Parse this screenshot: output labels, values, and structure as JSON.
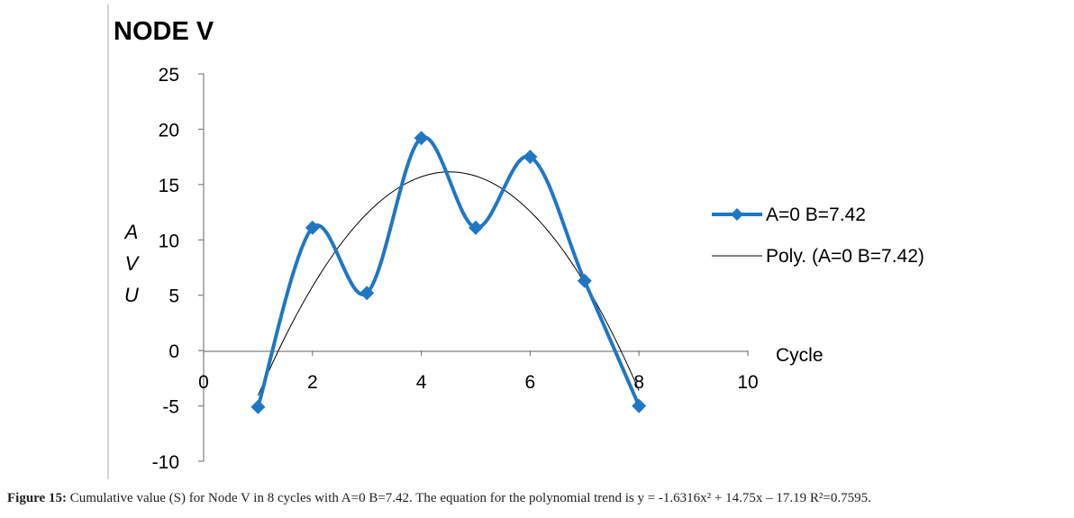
{
  "chart_data": {
    "type": "line",
    "title": "NODE V",
    "xlabel": "Cycle",
    "ylabel": [
      "A",
      "V",
      "U"
    ],
    "xlim": [
      0,
      10
    ],
    "ylim": [
      -10,
      25
    ],
    "x_ticks": [
      "0",
      "2",
      "4",
      "6",
      "8",
      "10"
    ],
    "y_ticks": [
      "25",
      "20",
      "15",
      "10",
      "5",
      "0",
      "-5",
      "-10"
    ],
    "grid": false,
    "legend_position": "right",
    "series": [
      {
        "name": "A=0 B=7.42",
        "x": [
          1,
          2,
          3,
          4,
          5,
          6,
          7,
          8
        ],
        "y": [
          -5.1,
          11.1,
          5.2,
          19.2,
          11.1,
          17.5,
          6.3,
          -5.0
        ],
        "color": "#1f77c4",
        "marker": "diamond",
        "smooth": true
      },
      {
        "name": "Poly. (A=0 B=7.42)",
        "type": "polynomial-trend",
        "coefficients": [
          -1.6316,
          14.75,
          -17.19
        ],
        "x_range": [
          1,
          8
        ],
        "color": "#000000"
      }
    ]
  },
  "caption": {
    "label": "Figure 15:",
    "text": " Cumulative value (S) for Node V in 8 cycles with A=0 B=7.42. The equation for the polynomial trend is y = -1.6316x² + 14.75x – 17.19 R²=0.7595."
  }
}
